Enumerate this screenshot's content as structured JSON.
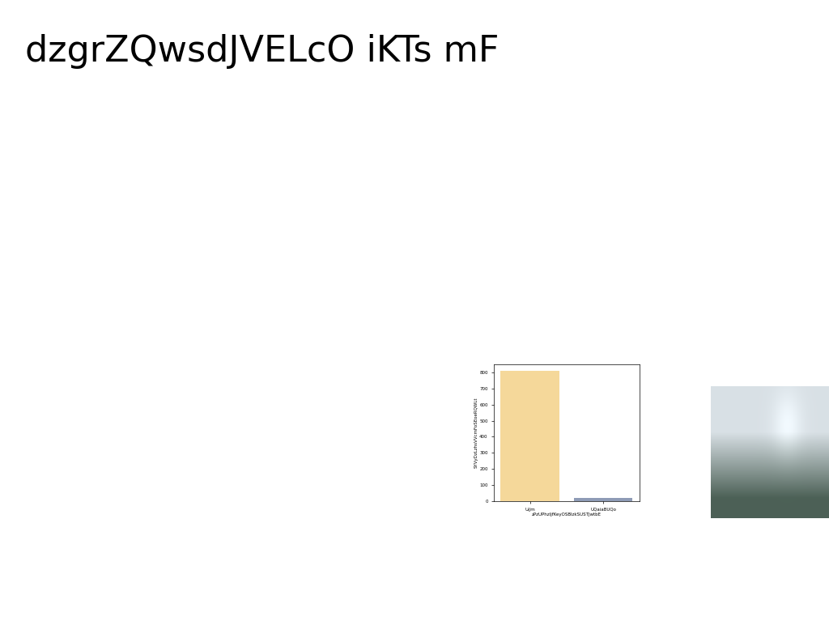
{
  "title": "dzgrZQwsdJVELcO iKTs mF",
  "chart_data": {
    "type": "bar",
    "categories": [
      "UIJm",
      "UQaiaBUQo"
    ],
    "values": [
      812,
      20
    ],
    "colors": [
      "#f5d89a",
      "#8e9bb6"
    ],
    "x_label": "zPzUPhzIjfKeyOSBlzkSUSTJwtbE",
    "y_label": "SYVyDzLzhsVVcmFoSEoeRQWLt",
    "ylim": [
      0,
      850
    ],
    "yticks": [
      0,
      100,
      200,
      300,
      400,
      500,
      600,
      700,
      800
    ],
    "grid": false
  }
}
